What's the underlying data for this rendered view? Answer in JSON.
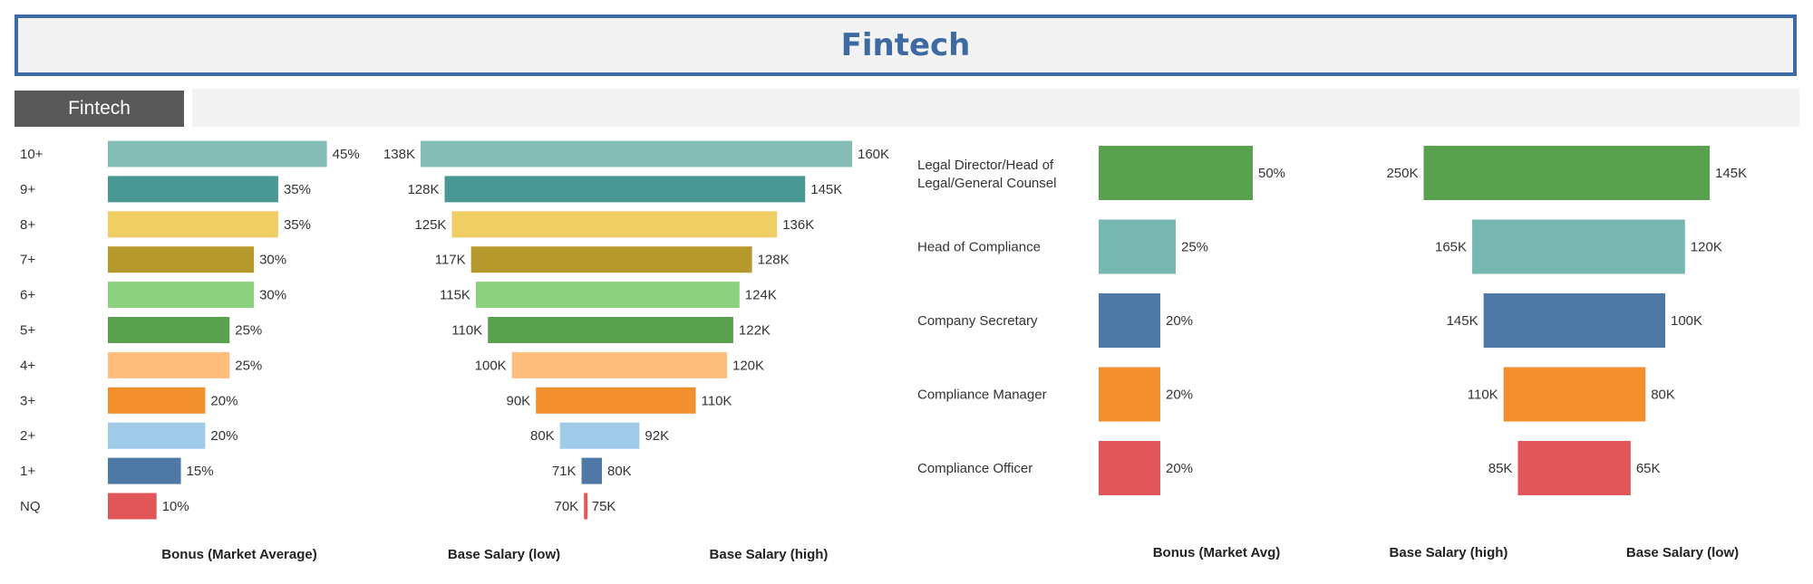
{
  "header": {
    "title": "Fintech"
  },
  "tab": {
    "label": "Fintech"
  },
  "chart_data": [
    {
      "type": "bar",
      "title": "",
      "categories": [
        "10+",
        "9+",
        "8+",
        "7+",
        "6+",
        "5+",
        "4+",
        "3+",
        "2+",
        "1+",
        "NQ"
      ],
      "xlabel_bonus": "Bonus (Market Average)",
      "xlabel_low": "Base Salary (low)",
      "xlabel_high": "Base Salary (high)",
      "bonus_pct": [
        45,
        35,
        35,
        30,
        30,
        25,
        25,
        20,
        20,
        15,
        10
      ],
      "salary_low_k": [
        138,
        128,
        125,
        117,
        115,
        110,
        100,
        90,
        80,
        71,
        70
      ],
      "salary_high_k": [
        160,
        145,
        136,
        128,
        124,
        122,
        120,
        110,
        92,
        80,
        75
      ],
      "colors": [
        "#86bcb6",
        "#499894",
        "#f1ce63",
        "#b6992d",
        "#8cd17d",
        "#59a14f",
        "#ffbe7d",
        "#f28e2b",
        "#a0cbe8",
        "#4e79a7",
        "#e15759"
      ]
    },
    {
      "type": "bar",
      "title": "",
      "categories": [
        "Legal Director/Head of Legal/General Counsel",
        "Head of Compliance",
        "Company Secretary",
        "Compliance Manager",
        "Compliance Officer"
      ],
      "category_lines": [
        [
          "Legal Director/Head of",
          "Legal/General Counsel"
        ],
        [
          "Head of Compliance"
        ],
        [
          "Company Secretary"
        ],
        [
          "Compliance Manager"
        ],
        [
          "Compliance Officer"
        ]
      ],
      "xlabel_bonus": "Bonus (Market Avg)",
      "xlabel_high": "Base Salary (high)",
      "xlabel_low": "Base Salary (low)",
      "bonus_pct": [
        50,
        25,
        20,
        20,
        20
      ],
      "salary_high_k": [
        250,
        165,
        145,
        110,
        85
      ],
      "salary_low_k": [
        145,
        120,
        100,
        80,
        65
      ],
      "colors": [
        "#59a14f",
        "#76b7b2",
        "#4e79a7",
        "#f28e2b",
        "#e15759"
      ]
    }
  ]
}
